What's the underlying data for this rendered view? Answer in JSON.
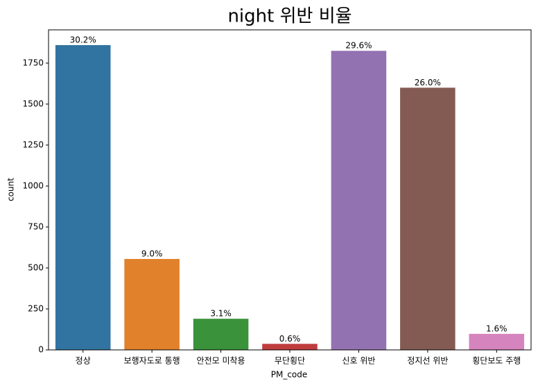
{
  "chart_data": {
    "type": "bar",
    "title": "night 위반 비율",
    "categories": [
      "정상",
      "보행자도로 통행",
      "안전모 미착용",
      "무단횡단",
      "신호 위반",
      "정지선 위반",
      "횡단보도 주행"
    ],
    "values": [
      1860,
      555,
      190,
      37,
      1825,
      1600,
      98
    ],
    "bar_labels": [
      "30.2%",
      "9.0%",
      "3.1%",
      "0.6%",
      "29.6%",
      "26.0%",
      "1.6%"
    ],
    "colors": [
      "#3274a1",
      "#e1812c",
      "#3a923a",
      "#c03d3e",
      "#9372b2",
      "#845b53",
      "#d684bd"
    ],
    "xlabel": "PM_code",
    "ylabel": "count",
    "ylim": [
      0,
      1953
    ],
    "yticks": [
      0,
      250,
      500,
      750,
      1000,
      1250,
      1500,
      1750
    ],
    "grid": false
  }
}
